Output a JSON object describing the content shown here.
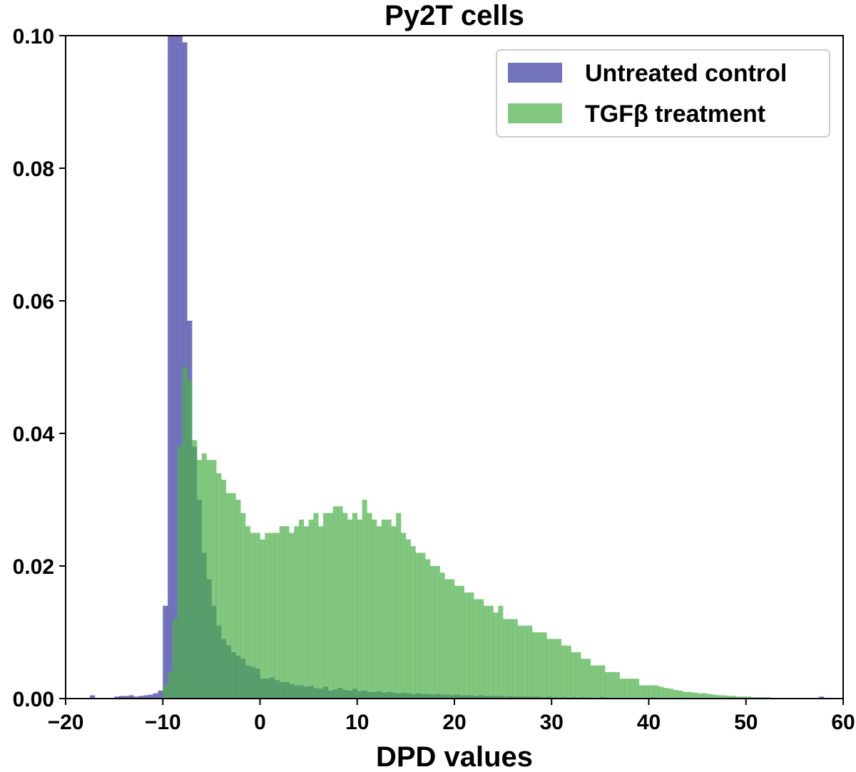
{
  "chart_data": {
    "type": "histogram",
    "title": "Py2T cells",
    "xlabel": "DPD values",
    "ylabel": "",
    "xlim": [
      -20,
      60
    ],
    "ylim": [
      0,
      0.1
    ],
    "x_ticks": [
      -20,
      -10,
      0,
      10,
      20,
      30,
      40,
      50,
      60
    ],
    "x_tick_labels": [
      "−20",
      "−10",
      "0",
      "10",
      "20",
      "30",
      "40",
      "50",
      "60"
    ],
    "y_ticks": [
      0.0,
      0.02,
      0.04,
      0.06,
      0.08,
      0.1
    ],
    "y_tick_labels": [
      "0.00",
      "0.02",
      "0.04",
      "0.06",
      "0.08",
      "0.10"
    ],
    "grid": false,
    "legend_position": "top-right",
    "bin_width": 0.5,
    "series": [
      {
        "name": "Untreated control",
        "color": "#5b5bb0",
        "bins": [
          [
            -17.5,
            0.0005
          ],
          [
            -15,
            0.0003
          ],
          [
            -14.5,
            0.0004
          ],
          [
            -14,
            0.0004
          ],
          [
            -13.5,
            0.0005
          ],
          [
            -13,
            0.0003
          ],
          [
            -12.5,
            0.0004
          ],
          [
            -12,
            0.0005
          ],
          [
            -11.5,
            0.0006
          ],
          [
            -11,
            0.0008
          ],
          [
            -10.5,
            0.0012
          ],
          [
            -10,
            0.014
          ],
          [
            -9.5,
            0.105
          ],
          [
            -9,
            0.105
          ],
          [
            -8.5,
            0.105
          ],
          [
            -8,
            0.099
          ],
          [
            -7.5,
            0.057
          ],
          [
            -7,
            0.038
          ],
          [
            -6.5,
            0.03
          ],
          [
            -6,
            0.022
          ],
          [
            -5.5,
            0.018
          ],
          [
            -5,
            0.014
          ],
          [
            -4.5,
            0.011
          ],
          [
            -4,
            0.009
          ],
          [
            -3.5,
            0.008
          ],
          [
            -3,
            0.007
          ],
          [
            -2.5,
            0.0065
          ],
          [
            -2,
            0.006
          ],
          [
            -1.5,
            0.005
          ],
          [
            -1,
            0.0048
          ],
          [
            -0.5,
            0.0045
          ],
          [
            0,
            0.003
          ],
          [
            0.5,
            0.003
          ],
          [
            1,
            0.0032
          ],
          [
            1.5,
            0.0028
          ],
          [
            2,
            0.0025
          ],
          [
            2.5,
            0.0025
          ],
          [
            3,
            0.0022
          ],
          [
            3.5,
            0.002
          ],
          [
            4,
            0.002
          ],
          [
            4.5,
            0.0018
          ],
          [
            5,
            0.0019
          ],
          [
            5.5,
            0.0016
          ],
          [
            6,
            0.0015
          ],
          [
            6.5,
            0.0018
          ],
          [
            7,
            0.0012
          ],
          [
            7.5,
            0.0014
          ],
          [
            8,
            0.0016
          ],
          [
            8.5,
            0.0013
          ],
          [
            9,
            0.0012
          ],
          [
            9.5,
            0.0015
          ],
          [
            10,
            0.0011
          ],
          [
            10.5,
            0.0012
          ],
          [
            11,
            0.001
          ],
          [
            11.5,
            0.001
          ],
          [
            12,
            0.0011
          ],
          [
            12.5,
            0.0009
          ],
          [
            13,
            0.001
          ],
          [
            13.5,
            0.0009
          ],
          [
            14,
            0.0008
          ],
          [
            14.5,
            0.0009
          ],
          [
            15,
            0.0008
          ],
          [
            15.5,
            0.0007
          ],
          [
            16,
            0.0008
          ],
          [
            16.5,
            0.0007
          ],
          [
            17,
            0.0007
          ],
          [
            17.5,
            0.0006
          ],
          [
            18,
            0.0007
          ],
          [
            18.5,
            0.0006
          ],
          [
            19,
            0.0006
          ],
          [
            19.5,
            0.0005
          ],
          [
            20,
            0.0006
          ],
          [
            20.5,
            0.0005
          ],
          [
            21,
            0.0005
          ],
          [
            21.5,
            0.0005
          ],
          [
            22,
            0.0004
          ],
          [
            22.5,
            0.0005
          ],
          [
            23,
            0.0004
          ],
          [
            23.5,
            0.0004
          ],
          [
            24,
            0.0004
          ],
          [
            24.5,
            0.0004
          ],
          [
            25,
            0.0003
          ],
          [
            25.5,
            0.0004
          ],
          [
            26,
            0.0003
          ],
          [
            26.5,
            0.0003
          ],
          [
            27,
            0.0003
          ],
          [
            27.5,
            0.0003
          ],
          [
            28,
            0.0003
          ],
          [
            28.5,
            0.0003
          ],
          [
            29,
            0.0002
          ],
          [
            29.5,
            0.0003
          ],
          [
            30,
            0.0002
          ],
          [
            31,
            0.0002
          ],
          [
            32,
            0.0002
          ],
          [
            33,
            0.0002
          ],
          [
            34,
            0.0001
          ],
          [
            35,
            0.0002
          ],
          [
            36,
            0.0001
          ],
          [
            38,
            0.0001
          ],
          [
            40,
            0.0001
          ],
          [
            42,
            0.0001
          ],
          [
            45,
            0.0001
          ],
          [
            57.5,
            0.0003
          ]
        ]
      },
      {
        "name": "TGFβ treatment",
        "color": "#4daf4a",
        "bins": [
          [
            -10,
            0.002
          ],
          [
            -9.5,
            0.004
          ],
          [
            -9,
            0.012
          ],
          [
            -8.5,
            0.038
          ],
          [
            -8,
            0.05
          ],
          [
            -7.5,
            0.048
          ],
          [
            -7,
            0.039
          ],
          [
            -6.5,
            0.036
          ],
          [
            -6,
            0.037
          ],
          [
            -5.5,
            0.036
          ],
          [
            -5,
            0.036
          ],
          [
            -4.5,
            0.034
          ],
          [
            -4,
            0.033
          ],
          [
            -3.5,
            0.031
          ],
          [
            -3,
            0.031
          ],
          [
            -2.5,
            0.03
          ],
          [
            -2,
            0.028
          ],
          [
            -1.5,
            0.026
          ],
          [
            -1,
            0.025
          ],
          [
            -0.5,
            0.025
          ],
          [
            0,
            0.024
          ],
          [
            0.5,
            0.025
          ],
          [
            1,
            0.025
          ],
          [
            1.5,
            0.025
          ],
          [
            2,
            0.026
          ],
          [
            2.5,
            0.026
          ],
          [
            3,
            0.025
          ],
          [
            3.5,
            0.026
          ],
          [
            4,
            0.027
          ],
          [
            4.5,
            0.026
          ],
          [
            5,
            0.027
          ],
          [
            5.5,
            0.028
          ],
          [
            6,
            0.026
          ],
          [
            6.5,
            0.028
          ],
          [
            7,
            0.028
          ],
          [
            7.5,
            0.029
          ],
          [
            8,
            0.029
          ],
          [
            8.5,
            0.028
          ],
          [
            9,
            0.027
          ],
          [
            9.5,
            0.028
          ],
          [
            10,
            0.027
          ],
          [
            10.5,
            0.03
          ],
          [
            11,
            0.028
          ],
          [
            11.5,
            0.027
          ],
          [
            12,
            0.026
          ],
          [
            12.5,
            0.027
          ],
          [
            13,
            0.027
          ],
          [
            13.5,
            0.026
          ],
          [
            14,
            0.028
          ],
          [
            14.5,
            0.025
          ],
          [
            15,
            0.024
          ],
          [
            15.5,
            0.023
          ],
          [
            16,
            0.022
          ],
          [
            16.5,
            0.022
          ],
          [
            17,
            0.021
          ],
          [
            17.5,
            0.02
          ],
          [
            18,
            0.02
          ],
          [
            18.5,
            0.019
          ],
          [
            19,
            0.018
          ],
          [
            19.5,
            0.018
          ],
          [
            20,
            0.017
          ],
          [
            20.5,
            0.017
          ],
          [
            21,
            0.016
          ],
          [
            21.5,
            0.016
          ],
          [
            22,
            0.015
          ],
          [
            22.5,
            0.015
          ],
          [
            23,
            0.014
          ],
          [
            23.5,
            0.014
          ],
          [
            24,
            0.013
          ],
          [
            24.5,
            0.014
          ],
          [
            25,
            0.012
          ],
          [
            25.5,
            0.012
          ],
          [
            26,
            0.012
          ],
          [
            26.5,
            0.011
          ],
          [
            27,
            0.011
          ],
          [
            27.5,
            0.011
          ],
          [
            28,
            0.01
          ],
          [
            28.5,
            0.01
          ],
          [
            29,
            0.01
          ],
          [
            29.5,
            0.009
          ],
          [
            30,
            0.009
          ],
          [
            30.5,
            0.009
          ],
          [
            31,
            0.008
          ],
          [
            31.5,
            0.008
          ],
          [
            32,
            0.007
          ],
          [
            32.5,
            0.007
          ],
          [
            33,
            0.006
          ],
          [
            33.5,
            0.006
          ],
          [
            34,
            0.005
          ],
          [
            34.5,
            0.005
          ],
          [
            35,
            0.005
          ],
          [
            35.5,
            0.004
          ],
          [
            36,
            0.004
          ],
          [
            36.5,
            0.004
          ],
          [
            37,
            0.003
          ],
          [
            37.5,
            0.003
          ],
          [
            38,
            0.003
          ],
          [
            38.5,
            0.003
          ],
          [
            39,
            0.002
          ],
          [
            39.5,
            0.002
          ],
          [
            40,
            0.002
          ],
          [
            40.5,
            0.002
          ],
          [
            41,
            0.0018
          ],
          [
            41.5,
            0.0016
          ],
          [
            42,
            0.0015
          ],
          [
            42.5,
            0.0013
          ],
          [
            43,
            0.0012
          ],
          [
            43.5,
            0.001
          ],
          [
            44,
            0.001
          ],
          [
            44.5,
            0.0009
          ],
          [
            45,
            0.0008
          ],
          [
            45.5,
            0.0008
          ],
          [
            46,
            0.0007
          ],
          [
            46.5,
            0.0006
          ],
          [
            47,
            0.0005
          ],
          [
            47.5,
            0.0005
          ],
          [
            48,
            0.0004
          ],
          [
            48.5,
            0.0004
          ],
          [
            49,
            0.0003
          ],
          [
            49.5,
            0.0003
          ],
          [
            50,
            0.0003
          ],
          [
            50.5,
            0.0002
          ],
          [
            51,
            0.0002
          ],
          [
            51.5,
            0.0002
          ],
          [
            52,
            0.0002
          ],
          [
            52.5,
            0.0001
          ],
          [
            53,
            0.0001
          ]
        ]
      }
    ]
  }
}
